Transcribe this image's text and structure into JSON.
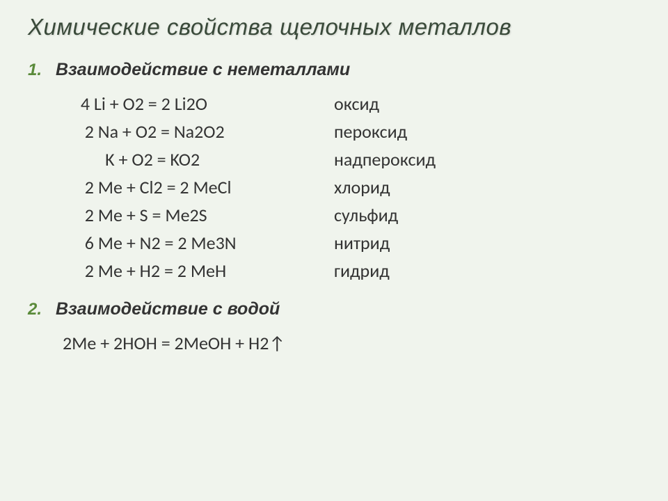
{
  "title": "Химические свойства щелочных металлов",
  "section1": {
    "number": "1.",
    "title": "Взаимодействие с неметаллами",
    "equations": [
      {
        "eq": " 4 Li + O2 = 2 Li2O",
        "name": "оксид"
      },
      {
        "eq": "  2 Na + O2 = Na2O2",
        "name": "  пероксид"
      },
      {
        "eq": "       K + O2 = KO2",
        "name": "            надпероксид"
      },
      {
        "eq": "  2 Me + Cl2 = 2 MeCl",
        "name": "  хлорид"
      },
      {
        "eq": "  2 Me + S = Me2S",
        "name": "  сульфид"
      },
      {
        "eq": "  6 Me + N2 = 2 Me3N",
        "name": "   нитрид"
      },
      {
        "eq": "  2 Me + H2 = 2 MeH",
        "name": "  гидрид"
      }
    ]
  },
  "section2": {
    "number": "2.",
    "title": "Взаимодействие с водой",
    "equation": "2Me + 2HOH = 2MeOH + H2↑"
  },
  "colors": {
    "background": "#f0f4ed",
    "title_color": "#3a4a3a",
    "number_color": "#5a8a3a",
    "text_color": "#333333"
  },
  "typography": {
    "title_fontsize": 33,
    "section_fontsize": 25,
    "equation_fontsize": 26,
    "title_italic": true,
    "section_italic": true,
    "section_bold": true
  }
}
